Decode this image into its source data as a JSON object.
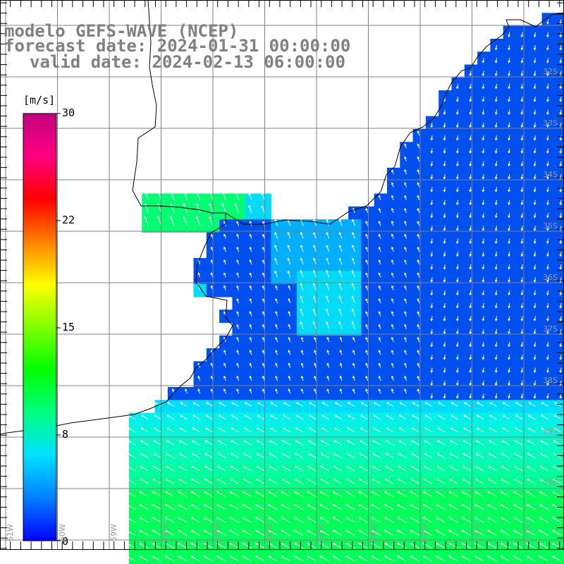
{
  "title": {
    "line1": "modelo GEFS-WAVE (NCEP)",
    "line2": "forecast date: 2024-01-31 00:00:00",
    "line3": "valid date: 2024-02-13 06:00:00"
  },
  "colorbar": {
    "unit": "[m/s]",
    "ticks": [
      "30",
      "22",
      "15",
      "8",
      "0"
    ],
    "colors": [
      "#0000ff",
      "#0080ff",
      "#00e0ff",
      "#00ff80",
      "#00ff00",
      "#80ff00",
      "#ffff00",
      "#ff8000",
      "#ff0000",
      "#ff0080",
      "#c0007f"
    ]
  },
  "latitude_labels": [
    "32S",
    "33S",
    "34S",
    "35S",
    "36S",
    "37S",
    "38S",
    "39S",
    "40S"
  ],
  "longitude_labels": [
    "61W",
    "60W",
    "59W",
    "58W",
    "57W",
    "56W",
    "55W",
    "54W",
    "53W",
    "52W",
    "51W"
  ],
  "colors": {
    "land": "#ffffff",
    "grid": "#808080",
    "coast": "#000000",
    "arrow": "#ffffff"
  }
}
